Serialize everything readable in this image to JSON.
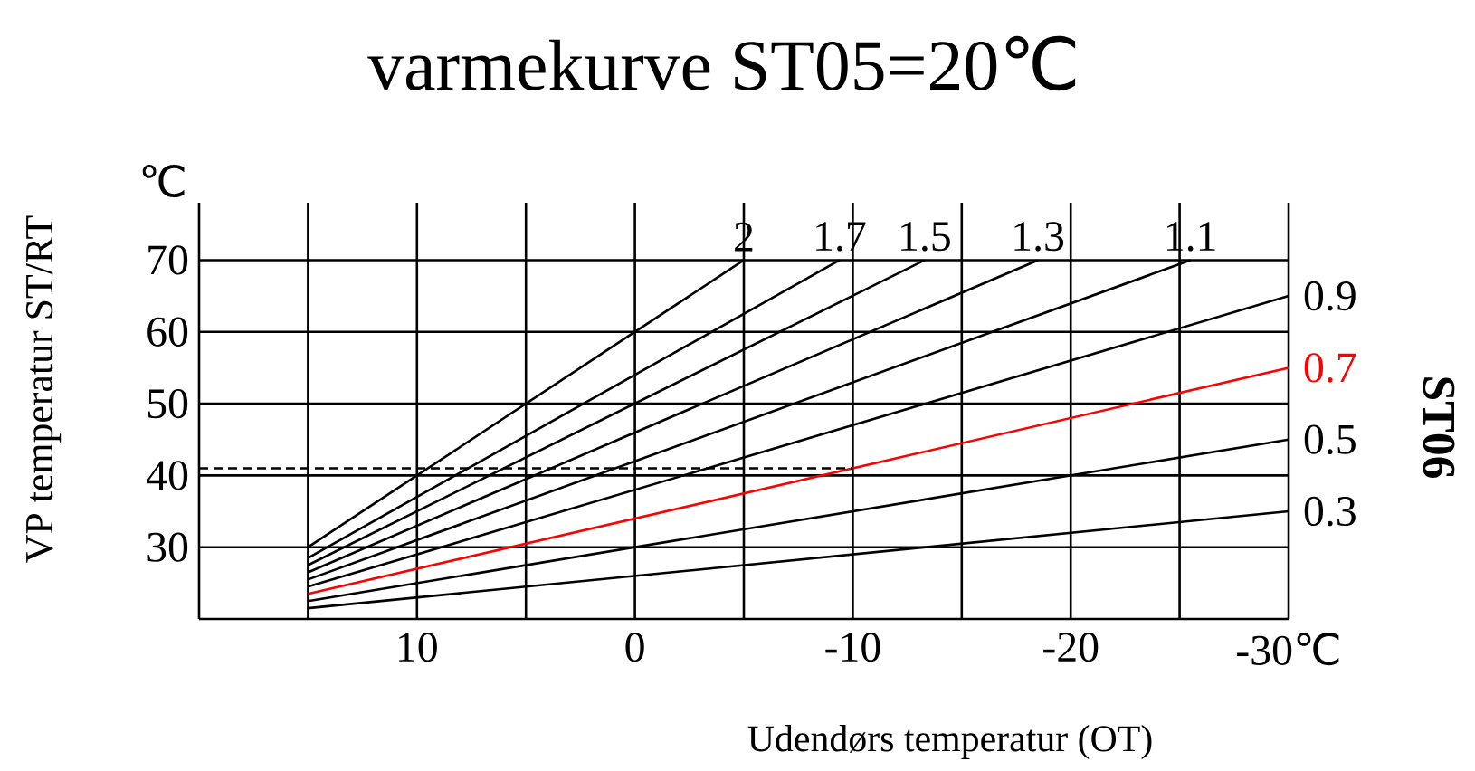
{
  "chart_data": {
    "type": "line",
    "title": "varmekurve  ST05=20℃",
    "xlabel": "Udendørs temperatur (OT)",
    "ylabel": "VP temperatur ST/RT",
    "annotations": [
      "℃",
      "**ST06**"
    ],
    "xlim": [
      20,
      -30
    ],
    "ylim": [
      20,
      78
    ],
    "xticks": [
      {
        "value": 15,
        "label": null
      },
      10,
      {
        "value": 5,
        "label": null
      },
      0,
      {
        "value": -5,
        "label": null
      },
      -10,
      {
        "value": -15,
        "label": null
      },
      -20,
      {
        "value": -25,
        "label": null
      },
      {
        "value": -30,
        "label": "-30℃"
      }
    ],
    "yticks": [
      30,
      40,
      50,
      60,
      70
    ],
    "grid": true,
    "series": [
      {
        "name": "2",
        "color": "#000000",
        "x": [
          15,
          -5
        ],
        "values": [
          30,
          70
        ]
      },
      {
        "name": "1.7",
        "color": "#000000",
        "x": [
          15,
          -9.4
        ],
        "values": [
          28.5,
          70
        ]
      },
      {
        "name": "1.5",
        "color": "#000000",
        "x": [
          15,
          -13.3
        ],
        "values": [
          27.5,
          70
        ]
      },
      {
        "name": "1.3",
        "color": "#000000",
        "x": [
          15,
          -18.5
        ],
        "values": [
          26.5,
          70
        ]
      },
      {
        "name": "1.1",
        "color": "#000000",
        "x": [
          15,
          -25.5
        ],
        "values": [
          25.5,
          70
        ]
      },
      {
        "name": "0.9",
        "color": "#000000",
        "x": [
          15,
          -30
        ],
        "values": [
          24.5,
          65
        ]
      },
      {
        "name": "0.7",
        "color": "#ff0000",
        "x": [
          15,
          -30
        ],
        "values": [
          23.5,
          55
        ]
      },
      {
        "name": "0.5",
        "color": "#000000",
        "x": [
          15,
          -30
        ],
        "values": [
          22.5,
          45
        ]
      },
      {
        "name": "0.3",
        "color": "#000000",
        "x": [
          15,
          -30
        ],
        "values": [
          21.5,
          35
        ]
      },
      {
        "color": "#000000",
        "line_style": "dashed",
        "x": [
          20,
          -10
        ],
        "values": [
          41,
          41
        ]
      }
    ]
  }
}
